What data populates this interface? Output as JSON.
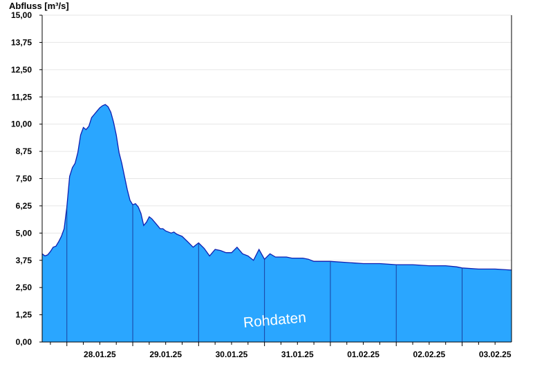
{
  "chart_data": {
    "type": "area",
    "ylabel": "Abfluss [m³/s]",
    "ylim": [
      0,
      15
    ],
    "yticks": [
      "0,00",
      "1,25",
      "2,50",
      "3,75",
      "5,00",
      "6,25",
      "7,50",
      "8,75",
      "10,00",
      "11,25",
      "12,50",
      "13,75",
      "15,00"
    ],
    "xlim": [
      "2025-01-27T15:00",
      "2025-02-03T18:00"
    ],
    "xticks": [
      {
        "label": "28.01.25",
        "date": "2025-01-28T12:00"
      },
      {
        "label": "29.01.25",
        "date": "2025-01-29T12:00"
      },
      {
        "label": "30.01.25",
        "date": "2025-01-30T12:00"
      },
      {
        "label": "31.01.25",
        "date": "2025-01-31T12:00"
      },
      {
        "label": "01.02.25",
        "date": "2025-02-01T12:00"
      },
      {
        "label": "02.02.25",
        "date": "2025-02-02T12:00"
      },
      {
        "label": "03.02.25",
        "date": "2025-02-03T12:00"
      }
    ],
    "grid": true,
    "watermark": "Rohdaten",
    "colors": {
      "fill": "#2aa6ff",
      "line": "#0f1fb0",
      "grid": "#e6e6e6",
      "axis": "#000000"
    },
    "series": [
      {
        "x": [
          "2025-01-27T15:00",
          "2025-01-27T16:00",
          "2025-01-27T17:00",
          "2025-01-27T18:00",
          "2025-01-27T19:00",
          "2025-01-27T20:00",
          "2025-01-27T21:00",
          "2025-01-27T22:00",
          "2025-01-27T23:00",
          "2025-01-28T00:00",
          "2025-01-28T01:00",
          "2025-01-28T02:00",
          "2025-01-28T03:00",
          "2025-01-28T04:00",
          "2025-01-28T05:00",
          "2025-01-28T06:00",
          "2025-01-28T07:00",
          "2025-01-28T08:00",
          "2025-01-28T09:00",
          "2025-01-28T10:00",
          "2025-01-28T11:00",
          "2025-01-28T12:00",
          "2025-01-28T13:00",
          "2025-01-28T14:00",
          "2025-01-28T15:00",
          "2025-01-28T16:00",
          "2025-01-28T17:00",
          "2025-01-28T18:00",
          "2025-01-28T19:00",
          "2025-01-28T20:00",
          "2025-01-28T21:00",
          "2025-01-28T22:00",
          "2025-01-28T23:00",
          "2025-01-29T00:00",
          "2025-01-29T01:00",
          "2025-01-29T02:00",
          "2025-01-29T03:00",
          "2025-01-29T04:00",
          "2025-01-29T05:00",
          "2025-01-29T06:00",
          "2025-01-29T07:00",
          "2025-01-29T08:00",
          "2025-01-29T09:00",
          "2025-01-29T10:00",
          "2025-01-29T11:00",
          "2025-01-29T12:00",
          "2025-01-29T13:00",
          "2025-01-29T14:00",
          "2025-01-29T15:00",
          "2025-01-29T16:00",
          "2025-01-29T18:00",
          "2025-01-29T20:00",
          "2025-01-29T22:00",
          "2025-01-30T00:00",
          "2025-01-30T02:00",
          "2025-01-30T04:00",
          "2025-01-30T06:00",
          "2025-01-30T08:00",
          "2025-01-30T10:00",
          "2025-01-30T12:00",
          "2025-01-30T14:00",
          "2025-01-30T16:00",
          "2025-01-30T18:00",
          "2025-01-30T20:00",
          "2025-01-30T22:00",
          "2025-01-31T00:00",
          "2025-01-31T02:00",
          "2025-01-31T04:00",
          "2025-01-31T06:00",
          "2025-01-31T08:00",
          "2025-01-31T10:00",
          "2025-01-31T12:00",
          "2025-01-31T14:00",
          "2025-01-31T16:00",
          "2025-01-31T18:00",
          "2025-01-31T20:00",
          "2025-01-31T22:00",
          "2025-02-01T00:00",
          "2025-02-01T06:00",
          "2025-02-01T12:00",
          "2025-02-01T18:00",
          "2025-02-02T00:00",
          "2025-02-02T06:00",
          "2025-02-02T12:00",
          "2025-02-02T18:00",
          "2025-02-02T22:00",
          "2025-02-03T00:00",
          "2025-02-03T06:00",
          "2025-02-03T12:00",
          "2025-02-03T18:00"
        ],
        "y": [
          4.05,
          3.95,
          4.0,
          4.15,
          4.35,
          4.4,
          4.6,
          4.85,
          5.2,
          6.2,
          7.6,
          8.0,
          8.2,
          8.7,
          9.5,
          9.85,
          9.75,
          9.9,
          10.3,
          10.45,
          10.6,
          10.75,
          10.85,
          10.9,
          10.8,
          10.55,
          10.1,
          9.5,
          8.7,
          8.2,
          7.6,
          7.0,
          6.5,
          6.3,
          6.35,
          6.2,
          5.9,
          5.35,
          5.5,
          5.75,
          5.65,
          5.5,
          5.35,
          5.2,
          5.2,
          5.1,
          5.05,
          5.0,
          5.05,
          4.95,
          4.85,
          4.6,
          4.35,
          4.55,
          4.3,
          3.95,
          4.25,
          4.2,
          4.1,
          4.1,
          4.35,
          4.05,
          3.95,
          3.75,
          4.25,
          3.8,
          4.05,
          3.9,
          3.9,
          3.9,
          3.85,
          3.85,
          3.85,
          3.8,
          3.7,
          3.7,
          3.7,
          3.7,
          3.65,
          3.6,
          3.6,
          3.55,
          3.55,
          3.5,
          3.5,
          3.45,
          3.4,
          3.35,
          3.35,
          3.3
        ]
      }
    ]
  }
}
